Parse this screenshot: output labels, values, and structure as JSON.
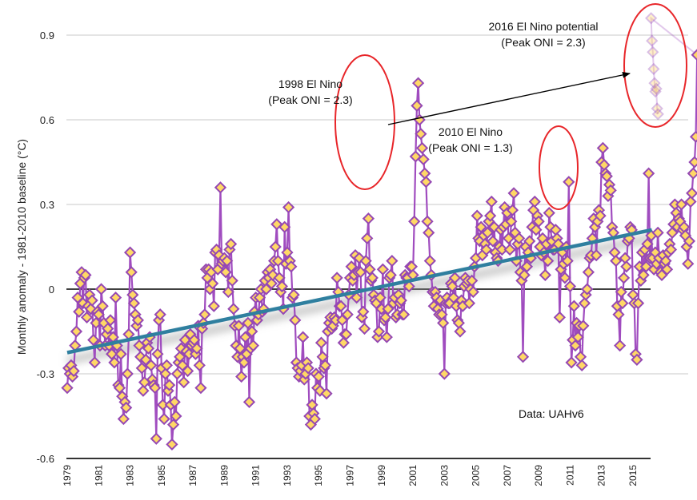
{
  "chart_data": {
    "type": "line",
    "title": "",
    "xlabel": "",
    "ylabel": "Monthly anomaly - 1981-2010 baseline (°C)",
    "ylim": [
      -0.6,
      1.0
    ],
    "xlim": [
      1979,
      2016.6
    ],
    "y_ticks": [
      {
        "value": 0.9,
        "label": "0.9"
      },
      {
        "value": 0.6,
        "label": "0.6"
      },
      {
        "value": 0.3,
        "label": "0.3"
      },
      {
        "value": 0,
        "label": "0"
      },
      {
        "value": -0.3,
        "label": "-0.3"
      },
      {
        "value": -0.6,
        "label": "-0.6"
      }
    ],
    "x_ticks": [
      "1979",
      "1981",
      "1983",
      "1985",
      "1987",
      "1989",
      "1991",
      "1993",
      "1995",
      "1997",
      "1999",
      "2001",
      "2003",
      "2005",
      "2007",
      "2009",
      "2011",
      "2013",
      "2015"
    ],
    "grid": "horizontal",
    "colors": {
      "line": "#a04cbf",
      "marker_fill": "#ffd866",
      "marker_stroke": "#9548b3",
      "trend": "#2f7f9f",
      "ellipse": "#e8262a",
      "arrow": "#000000",
      "grid": "#c8c8c8",
      "zero_line": "#000000"
    },
    "series": [
      {
        "name": "UAHv6 monthly anomaly",
        "start_year": 1979.0,
        "step_months": 1,
        "values": [
          -0.35,
          -0.28,
          -0.3,
          -0.27,
          -0.31,
          -0.29,
          -0.2,
          -0.15,
          -0.03,
          -0.08,
          0.02,
          0.06,
          -0.05,
          0.04,
          0.05,
          -0.1,
          -0.06,
          -0.02,
          -0.07,
          -0.04,
          -0.18,
          -0.26,
          -0.12,
          -0.08,
          -0.09,
          -0.2,
          0.0,
          -0.06,
          -0.12,
          -0.2,
          -0.16,
          -0.14,
          -0.2,
          -0.11,
          -0.23,
          -0.17,
          -0.26,
          -0.03,
          -0.2,
          -0.34,
          -0.35,
          -0.23,
          -0.38,
          -0.46,
          -0.4,
          -0.42,
          -0.3,
          -0.16,
          0.13,
          0.06,
          -0.02,
          -0.05,
          -0.09,
          -0.13,
          -0.11,
          -0.2,
          -0.24,
          -0.28,
          -0.36,
          -0.33,
          -0.25,
          -0.19,
          -0.21,
          -0.17,
          -0.27,
          -0.32,
          -0.34,
          -0.35,
          -0.53,
          -0.23,
          -0.11,
          -0.09,
          -0.28,
          -0.41,
          -0.46,
          -0.3,
          -0.27,
          -0.36,
          -0.34,
          -0.41,
          -0.55,
          -0.48,
          -0.4,
          -0.45,
          -0.3,
          -0.26,
          -0.24,
          -0.21,
          -0.27,
          -0.33,
          -0.18,
          -0.22,
          -0.29,
          -0.23,
          -0.16,
          -0.2,
          -0.19,
          -0.18,
          -0.23,
          -0.21,
          -0.13,
          -0.27,
          -0.35,
          -0.14,
          -0.12,
          -0.09,
          0.07,
          0.04,
          0.07,
          0.0,
          0.06,
          0.02,
          -0.06,
          0.13,
          0.14,
          0.07,
          0.12,
          0.36,
          0.09,
          0.1,
          0.11,
          0.06,
          0.1,
          -0.01,
          0.14,
          0.16,
          0.03,
          -0.07,
          -0.13,
          -0.2,
          -0.24,
          -0.13,
          -0.21,
          -0.31,
          -0.24,
          -0.26,
          -0.17,
          -0.23,
          -0.12,
          -0.4,
          -0.21,
          -0.15,
          -0.2,
          -0.08,
          -0.03,
          -0.11,
          -0.09,
          -0.03,
          0.0,
          -0.08,
          -0.07,
          0.03,
          0.0,
          0.06,
          0.04,
          0.07,
          0.02,
          0.05,
          0.1,
          0.15,
          0.23,
          0.1,
          0.04,
          -0.01,
          0.01,
          -0.07,
          0.22,
          0.09,
          0.13,
          0.29,
          0.1,
          0.08,
          -0.03,
          -0.02,
          -0.11,
          -0.26,
          -0.28,
          -0.31,
          -0.29,
          -0.27,
          -0.17,
          -0.32,
          -0.3,
          -0.26,
          -0.28,
          -0.45,
          -0.48,
          -0.41,
          -0.44,
          -0.46,
          -0.3,
          -0.35,
          -0.31,
          -0.36,
          -0.19,
          -0.24,
          -0.28,
          -0.27,
          -0.37,
          -0.15,
          -0.12,
          -0.1,
          -0.14,
          -0.13,
          -0.1,
          -0.11,
          0.04,
          -0.01,
          -0.06,
          -0.06,
          -0.11,
          -0.19,
          -0.16,
          -0.16,
          -0.09,
          -0.02,
          0.04,
          0.08,
          0.03,
          0.05,
          0.12,
          -0.03,
          0.06,
          0.11,
          0.06,
          -0.1,
          -0.08,
          -0.14,
          0.1,
          0.18,
          0.25,
          0.07,
          0.03,
          0.04,
          -0.02,
          -0.04,
          -0.05,
          -0.17,
          -0.15,
          -0.03,
          -0.07,
          0.07,
          -0.11,
          -0.1,
          -0.17,
          -0.07,
          0.04,
          0.05,
          0.1,
          -0.05,
          -0.03,
          -0.1,
          -0.09,
          -0.02,
          -0.05,
          -0.04,
          -0.09,
          -0.09,
          0.05,
          0.04,
          0.04,
          0.01,
          0.08,
          0.08,
          0.05,
          0.24,
          0.47,
          0.65,
          0.73,
          0.6,
          0.55,
          0.5,
          0.46,
          0.41,
          0.38,
          0.24,
          0.2,
          0.1,
          0.05,
          -0.01,
          -0.06,
          -0.01,
          -0.03,
          -0.07,
          -0.09,
          -0.04,
          -0.09,
          -0.12,
          -0.3,
          -0.05,
          -0.03,
          -0.05,
          -0.05,
          0.02,
          0.01,
          -0.03,
          0.04,
          -0.06,
          -0.11,
          -0.12,
          -0.15,
          -0.04,
          -0.06,
          0.01,
          0.04,
          0.02,
          0.03,
          -0.05,
          0.0,
          0.03,
          -0.01,
          0.08,
          0.11,
          0.26,
          0.18,
          0.17,
          0.22,
          0.12,
          0.19,
          0.16,
          0.14,
          0.2,
          0.24,
          0.26,
          0.31,
          0.17,
          0.22,
          0.13,
          0.11,
          0.1,
          0.15,
          0.21,
          0.14,
          0.22,
          0.29,
          0.23,
          0.27,
          0.18,
          0.14,
          0.24,
          0.28,
          0.34,
          0.2,
          0.1,
          0.16,
          0.18,
          0.06,
          0.03,
          -0.24,
          0.05,
          0.15,
          0.08,
          0.13,
          0.17,
          0.11,
          0.22,
          0.28,
          0.31,
          0.21,
          0.26,
          0.24,
          0.15,
          0.12,
          0.18,
          0.13,
          0.05,
          0.16,
          0.1,
          0.27,
          0.22,
          0.17,
          0.14,
          0.14,
          0.21,
          0.18,
          0.16,
          -0.1,
          0.07,
          0.13,
          0.09,
          0.04,
          0.15,
          0.1,
          0.38,
          0.01,
          -0.26,
          -0.18,
          -0.06,
          -0.2,
          -0.12,
          -0.17,
          -0.13,
          -0.24,
          -0.27,
          -0.13,
          -0.05,
          -0.02,
          0.0,
          0.06,
          0.11,
          0.12,
          0.18,
          0.25,
          0.22,
          0.12,
          0.24,
          0.28,
          0.26,
          0.45,
          0.5,
          0.44,
          0.41,
          0.4,
          0.33,
          0.37,
          0.35,
          0.22,
          0.2,
          0.13,
          0.1,
          -0.06,
          -0.09,
          -0.2,
          -0.01,
          -0.05,
          0.04,
          0.11,
          0.08,
          0.17,
          0.18,
          0.22,
          0.21,
          -0.02,
          -0.05,
          -0.23,
          -0.25,
          -0.05,
          0.08,
          0.03,
          0.13,
          0.05,
          0.14,
          0.08,
          0.16,
          0.41,
          0.11,
          0.19,
          0.11,
          0.07,
          0.13,
          0.09,
          0.2,
          0.11,
          0.06,
          0.05,
          0.12,
          0.09,
          0.1,
          0.07,
          0.13,
          0.16,
          0.14,
          0.2,
          0.23,
          0.3,
          0.27,
          0.22,
          0.25,
          0.24,
          0.3,
          0.21,
          0.22,
          0.19,
          0.15,
          0.09,
          0.17,
          0.31,
          0.34,
          0.41,
          0.45,
          0.54,
          0.83
        ]
      },
      {
        "name": "2016 projected (faded)",
        "start_year": 2016.0,
        "step_months": 1,
        "values": [
          0.96,
          0.88,
          0.84,
          0.78,
          0.73,
          0.7,
          0.71,
          0.64,
          0.62
        ]
      }
    ],
    "trend": {
      "name": "Linear trend",
      "start": {
        "x": 1979.0,
        "y": -0.225
      },
      "end": {
        "x": 2016.2,
        "y": 0.21
      }
    },
    "annotations": [
      {
        "id": "el-nino-1998",
        "lines": [
          "1998 El Nino",
          "(Peak ONI = 2.3)"
        ],
        "target_year": 1998.2,
        "target_value": 0.6
      },
      {
        "id": "el-nino-2010",
        "lines": [
          "2010 El Nino",
          "(Peak ONI = 1.3)"
        ],
        "target_year": 2010.1,
        "target_value": 0.42
      },
      {
        "id": "el-nino-2016",
        "lines": [
          "2016 El Nino potential",
          "(Peak ONI = 2.3)"
        ],
        "target_year": 2016.2,
        "target_value": 0.78
      }
    ],
    "source_note": "Data: UAHv6"
  }
}
